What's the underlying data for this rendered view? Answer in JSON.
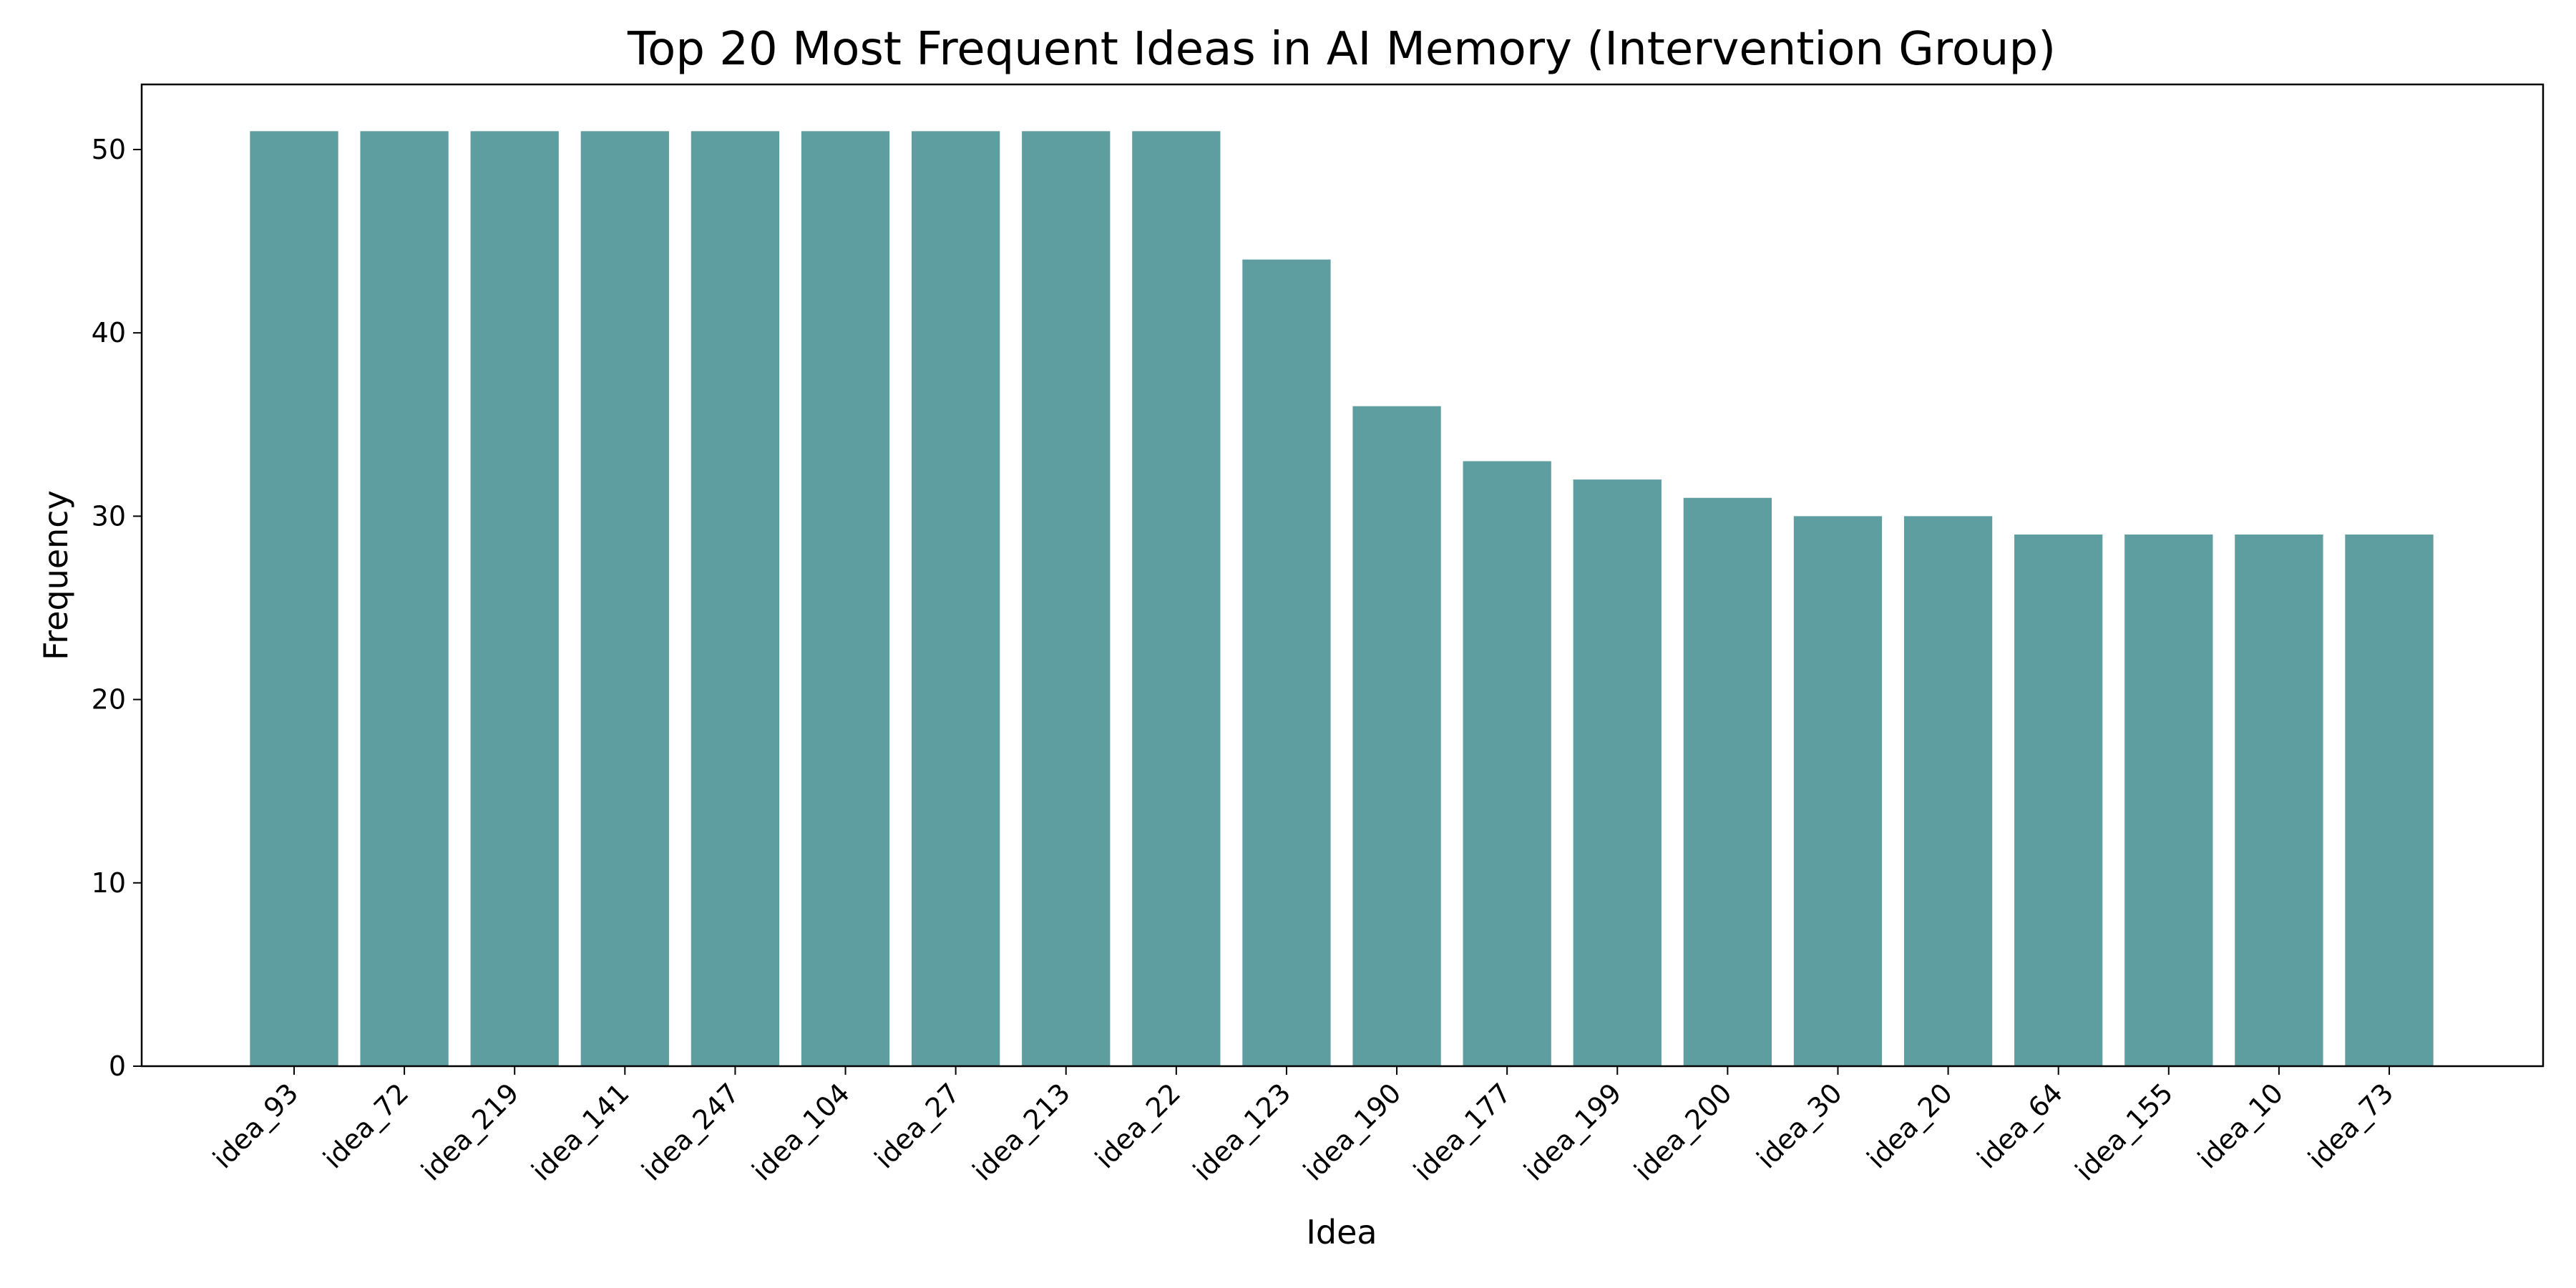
{
  "chart_data": {
    "type": "bar",
    "title": "Top 20 Most Frequent Ideas in AI Memory (Intervention Group)",
    "xlabel": "Idea",
    "ylabel": "Frequency",
    "categories": [
      "idea_93",
      "idea_72",
      "idea_219",
      "idea_141",
      "idea_247",
      "idea_104",
      "idea_27",
      "idea_213",
      "idea_22",
      "idea_123",
      "idea_190",
      "idea_177",
      "idea_199",
      "idea_200",
      "idea_30",
      "idea_20",
      "idea_64",
      "idea_155",
      "idea_10",
      "idea_73"
    ],
    "values": [
      51,
      51,
      51,
      51,
      51,
      51,
      51,
      51,
      51,
      44,
      36,
      33,
      32,
      31,
      30,
      30,
      29,
      29,
      29,
      29
    ],
    "ylim": [
      0,
      53.55
    ],
    "yticks": [
      0,
      10,
      20,
      30,
      40,
      50
    ],
    "grid": false,
    "colors": {
      "bar": "#5f9ea0",
      "axis": "#000000"
    }
  }
}
